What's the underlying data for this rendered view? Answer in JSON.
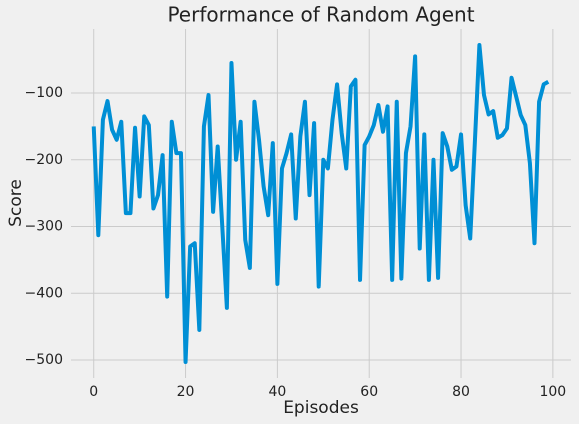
{
  "chart_data": {
    "type": "line",
    "title": "Performance of Random Agent",
    "xlabel": "Episodes",
    "ylabel": "Score",
    "x": [
      0,
      1,
      2,
      3,
      4,
      5,
      6,
      7,
      8,
      9,
      10,
      11,
      12,
      13,
      14,
      15,
      16,
      17,
      18,
      19,
      20,
      21,
      22,
      23,
      24,
      25,
      26,
      27,
      28,
      29,
      30,
      31,
      32,
      33,
      34,
      35,
      36,
      37,
      38,
      39,
      40,
      41,
      42,
      43,
      44,
      45,
      46,
      47,
      48,
      49,
      50,
      51,
      52,
      53,
      54,
      55,
      56,
      57,
      58,
      59,
      60,
      61,
      62,
      63,
      64,
      65,
      66,
      67,
      68,
      69,
      70,
      71,
      72,
      73,
      74,
      75,
      76,
      77,
      78,
      79,
      80,
      81,
      82,
      83,
      84,
      85,
      86,
      87,
      88,
      89,
      90,
      91,
      92,
      93,
      94,
      95,
      96,
      97,
      98,
      99
    ],
    "series": [
      {
        "color": "#008fd5",
        "values": [
          -150,
          -313,
          -140,
          -112,
          -155,
          -170,
          -143,
          -280,
          -280,
          -152,
          -255,
          -135,
          -148,
          -273,
          -253,
          -193,
          -405,
          -143,
          -190,
          -190,
          -503,
          -330,
          -325,
          -455,
          -150,
          -103,
          -278,
          -180,
          -300,
          -422,
          -55,
          -200,
          -143,
          -320,
          -362,
          -113,
          -170,
          -240,
          -283,
          -175,
          -386,
          -213,
          -190,
          -162,
          -288,
          -165,
          -113,
          -253,
          -145,
          -390,
          -200,
          -213,
          -140,
          -87,
          -160,
          -213,
          -90,
          -80,
          -380,
          -178,
          -165,
          -148,
          -118,
          -158,
          -120,
          -380,
          -113,
          -378,
          -190,
          -150,
          -45,
          -333,
          -162,
          -380,
          -200,
          -377,
          -160,
          -180,
          -215,
          -210,
          -162,
          -268,
          -318,
          -175,
          -28,
          -103,
          -132,
          -127,
          -167,
          -163,
          -153,
          -77,
          -105,
          -133,
          -148,
          -205,
          -325,
          -113,
          -87,
          -83
        ]
      }
    ],
    "xlim": [
      -4.95,
      103.95
    ],
    "xticks": [
      0,
      20,
      40,
      60,
      80,
      100
    ],
    "ylim": [
      -527,
      -4
    ],
    "yticks": [
      {
        "value": -500,
        "label": "−500"
      },
      {
        "value": -400,
        "label": "−400"
      },
      {
        "value": -300,
        "label": "−300"
      },
      {
        "value": -200,
        "label": "−200"
      },
      {
        "value": -100,
        "label": "−100"
      }
    ],
    "grid": true
  }
}
